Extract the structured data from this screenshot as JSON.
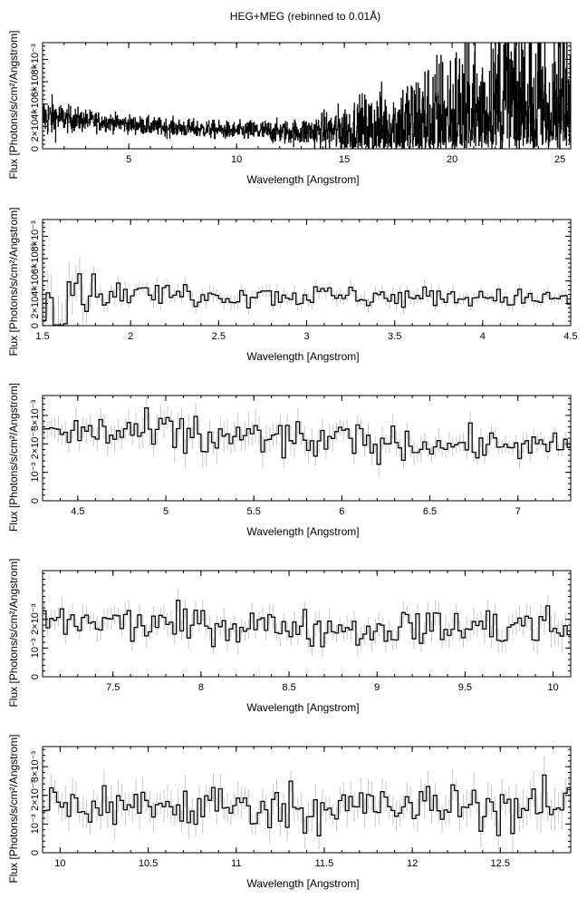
{
  "title": "HEG+MEG (rebinned to 0.01Å)",
  "colors": {
    "foreground": "#000000",
    "errorbars": "#c8c8c8",
    "background": "#ffffff"
  },
  "chart_data": [
    {
      "type": "line",
      "xlabel": "Wavelength [Angstrom]",
      "ylabel": "Flux [Photons/s/cm²/Angstrom]",
      "xlim": [
        1.0,
        25.5
      ],
      "ylim": [
        0,
        0.0095
      ],
      "xticks": [
        5,
        10,
        15,
        20,
        25
      ],
      "yticks": [
        0,
        0.002,
        0.004,
        0.006,
        0.008
      ],
      "ytick_labels": [
        "0",
        "2×10⁻³",
        "4×10⁻³",
        "6×10⁻³",
        "8×10⁻³"
      ],
      "x": [
        1.5,
        2,
        3,
        4,
        5,
        6,
        7,
        8,
        9,
        10,
        11,
        12,
        13,
        14,
        15,
        16,
        17,
        18,
        19,
        20,
        21,
        22,
        23,
        24,
        25
      ],
      "y": [
        0.0028,
        0.0027,
        0.0025,
        0.0024,
        0.0022,
        0.002,
        0.0019,
        0.0018,
        0.0017,
        0.0016,
        0.0016,
        0.0015,
        0.0015,
        0.0016,
        0.0016,
        0.0017,
        0.0018,
        0.002,
        0.0022,
        0.0024,
        0.0027,
        0.003,
        0.0035,
        0.0035,
        0.003
      ],
      "noise": [
        0.0009,
        0.0006,
        0.0005,
        0.0004,
        0.0004,
        0.0004,
        0.0004,
        0.0004,
        0.0004,
        0.0004,
        0.0005,
        0.0005,
        0.0006,
        0.0008,
        0.0012,
        0.0016,
        0.002,
        0.0024,
        0.003,
        0.0035,
        0.0042,
        0.005,
        0.0055,
        0.005,
        0.0045
      ],
      "errors": false,
      "bin": 0.015
    },
    {
      "type": "line",
      "xlabel": "Wavelength [Angstrom]",
      "ylabel": "Flux [Photons/s/cm²/Angstrom]",
      "xlim": [
        1.5,
        4.5
      ],
      "ylim": [
        0,
        0.0095
      ],
      "xticks": [
        1.5,
        2,
        2.5,
        3,
        3.5,
        4,
        4.5
      ],
      "yticks": [
        0,
        0.002,
        0.004,
        0.006,
        0.008
      ],
      "ytick_labels": [
        "0",
        "2×10⁻³",
        "4×10⁻³",
        "6×10⁻³",
        "8×10⁻³"
      ],
      "x": [
        1.5,
        1.6,
        1.7,
        1.8,
        2.0,
        2.5,
        3.0,
        3.5,
        4.0,
        4.5
      ],
      "y": [
        0.003,
        0.0035,
        0.0035,
        0.0029,
        0.0029,
        0.0028,
        0.0027,
        0.0026,
        0.0025,
        0.0024
      ],
      "noise": [
        0.0015,
        0.002,
        0.0015,
        0.0006,
        0.0005,
        0.0005,
        0.0005,
        0.0005,
        0.0004,
        0.0004
      ],
      "errors": true,
      "bin": 0.02
    },
    {
      "type": "line",
      "xlabel": "Wavelength [Angstrom]",
      "ylabel": "Flux [Photons/s/cm²/Angstrom]",
      "xlim": [
        4.3,
        7.3
      ],
      "ylim": [
        0,
        0.0037
      ],
      "xticks": [
        4.5,
        5,
        5.5,
        6,
        6.5,
        7
      ],
      "yticks": [
        0,
        0.001,
        0.002,
        0.003
      ],
      "ytick_labels": [
        "0",
        "10⁻³",
        "2×10⁻³",
        "3×10⁻³"
      ],
      "x": [
        4.3,
        5.0,
        5.5,
        6.0,
        6.5,
        7.3
      ],
      "y": [
        0.0024,
        0.0023,
        0.0022,
        0.0021,
        0.002,
        0.0019
      ],
      "noise": [
        0.0003,
        0.0004,
        0.0004,
        0.0003,
        0.0003,
        0.0002
      ],
      "errors": true,
      "bin": 0.02
    },
    {
      "type": "line",
      "xlabel": "Wavelength [Angstrom]",
      "ylabel": "Flux [Photons/s/cm²/Angstrom]",
      "xlim": [
        7.1,
        10.1
      ],
      "ylim": [
        0,
        0.0037
      ],
      "xticks": [
        7.5,
        8,
        8.5,
        9,
        9.5,
        10
      ],
      "yticks": [
        0,
        0.001,
        0.002
      ],
      "ytick_labels": [
        "0",
        "10⁻³",
        "2×10⁻³"
      ],
      "x": [
        7.1,
        8.0,
        9.0,
        10.1
      ],
      "y": [
        0.0019,
        0.0018,
        0.0017,
        0.0017
      ],
      "noise": [
        0.0003,
        0.0003,
        0.0003,
        0.0004
      ],
      "errors": true,
      "bin": 0.02
    },
    {
      "type": "line",
      "xlabel": "Wavelength [Angstrom]",
      "ylabel": "Flux [Photons/s/cm²/Angstrom]",
      "xlim": [
        9.9,
        12.9
      ],
      "ylim": [
        0,
        0.0037
      ],
      "xticks": [
        10,
        10.5,
        11,
        11.5,
        12,
        12.5
      ],
      "yticks": [
        0,
        0.001,
        0.002,
        0.003
      ],
      "ytick_labels": [
        "0",
        "10⁻³",
        "2×10⁻³",
        "3×10⁻³"
      ],
      "x": [
        9.9,
        11.0,
        12.0,
        12.9
      ],
      "y": [
        0.0017,
        0.0016,
        0.0016,
        0.0016
      ],
      "noise": [
        0.0004,
        0.0004,
        0.0004,
        0.0005
      ],
      "errors": true,
      "bin": 0.02
    }
  ]
}
